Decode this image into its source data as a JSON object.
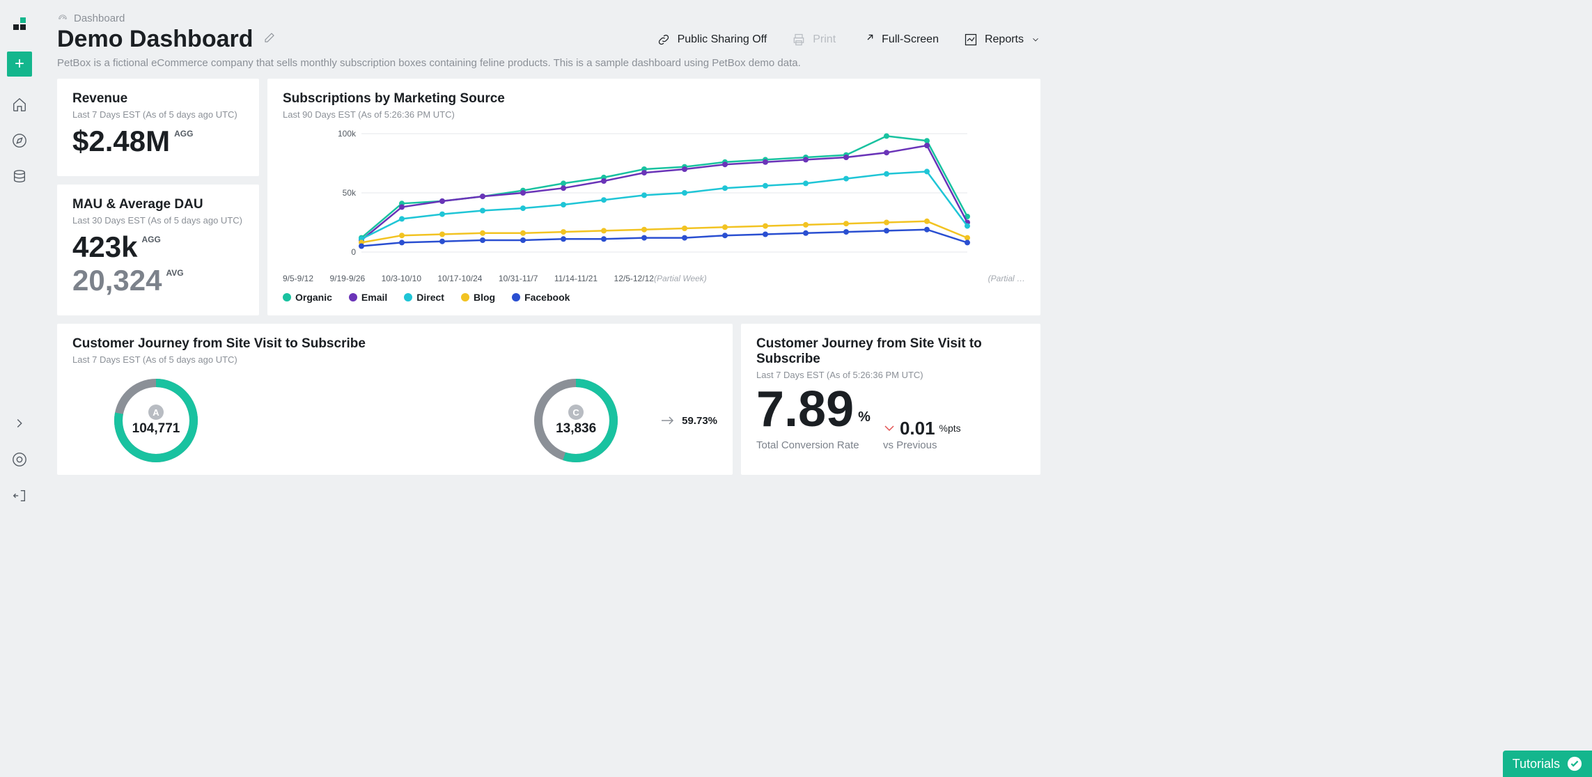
{
  "breadcrumb": {
    "label": "Dashboard"
  },
  "title": "Demo Dashboard",
  "description": "PetBox is a fictional eCommerce company that sells monthly subscription boxes containing feline products. This is a sample dashboard using PetBox demo data.",
  "header_actions": {
    "sharing": "Public Sharing Off",
    "print": "Print",
    "fullscreen": "Full-Screen",
    "reports": "Reports"
  },
  "revenue_card": {
    "title": "Revenue",
    "sub": "Last 7 Days EST (As of 5 days ago UTC)",
    "value": "$2.48M",
    "badge": "AGG"
  },
  "mau_card": {
    "title": "MAU & Average DAU",
    "sub": "Last 30 Days EST (As of 5 days ago UTC)",
    "value1": "423k",
    "badge1": "AGG",
    "value2": "20,324",
    "badge2": "AVG"
  },
  "chart": {
    "title": "Subscriptions by Marketing Source",
    "sub": "Last 90 Days EST (As of 5:26:36 PM UTC)",
    "type": "line",
    "ylim": [
      0,
      100000
    ],
    "yticks": [
      {
        "v": 0,
        "label": "0"
      },
      {
        "v": 50000,
        "label": "50k"
      },
      {
        "v": 100000,
        "label": "100k"
      }
    ],
    "x_labels": [
      "9/5-9/12",
      "9/19-9/26",
      "10/3-10/10",
      "10/17-10/24",
      "10/31-11/7",
      "11/14-11/21",
      "12/5-12/12"
    ],
    "partial_left": "(Partial Week)",
    "partial_right": "(Partial …",
    "grid_color": "#e5e7eb",
    "background": "#ffffff",
    "marker_radius": 4,
    "line_width": 2.5,
    "series": [
      {
        "name": "Organic",
        "color": "#19c2a0",
        "values": [
          12,
          41,
          43,
          47,
          52,
          58,
          63,
          70,
          72,
          76,
          78,
          80,
          82,
          98,
          94,
          30
        ]
      },
      {
        "name": "Email",
        "color": "#6a34b8",
        "values": [
          10,
          38,
          43,
          47,
          50,
          54,
          60,
          67,
          70,
          74,
          76,
          78,
          80,
          84,
          90,
          25
        ]
      },
      {
        "name": "Direct",
        "color": "#1fc5d6",
        "values": [
          11,
          28,
          32,
          35,
          37,
          40,
          44,
          48,
          50,
          54,
          56,
          58,
          62,
          66,
          68,
          22
        ]
      },
      {
        "name": "Blog",
        "color": "#f2c322",
        "values": [
          8,
          14,
          15,
          16,
          16,
          17,
          18,
          19,
          20,
          21,
          22,
          23,
          24,
          25,
          26,
          12
        ]
      },
      {
        "name": "Facebook",
        "color": "#2a4fd1",
        "values": [
          5,
          8,
          9,
          10,
          10,
          11,
          11,
          12,
          12,
          14,
          15,
          16,
          17,
          18,
          19,
          8
        ]
      }
    ]
  },
  "journey_card": {
    "title": "Customer Journey from Site Visit to Subscribe",
    "sub": "Last 7 Days EST (As of 5 days ago UTC)",
    "rings": [
      {
        "letter": "A",
        "value": "104,771",
        "pct": 0.78,
        "ring_color": "#19c2a0",
        "track_color": "#8b9097"
      },
      {
        "letter": "C",
        "value": "13,836",
        "pct": 0.55,
        "ring_color": "#19c2a0",
        "track_color": "#8b9097"
      }
    ],
    "arrow_pct": "59.73%"
  },
  "conv_card": {
    "title": "Customer Journey from Site Visit to Subscribe",
    "sub": "Last 7 Days EST (As of 5:26:36 PM UTC)",
    "value": "7.89",
    "pct_label": "%",
    "delta": "0.01",
    "delta_units": "%pts",
    "prev": "vs Previous",
    "label": "Total Conversion Rate",
    "delta_color": "#e25151"
  },
  "tutorials_label": "Tutorials",
  "colors": {
    "accent": "#14b68d"
  }
}
